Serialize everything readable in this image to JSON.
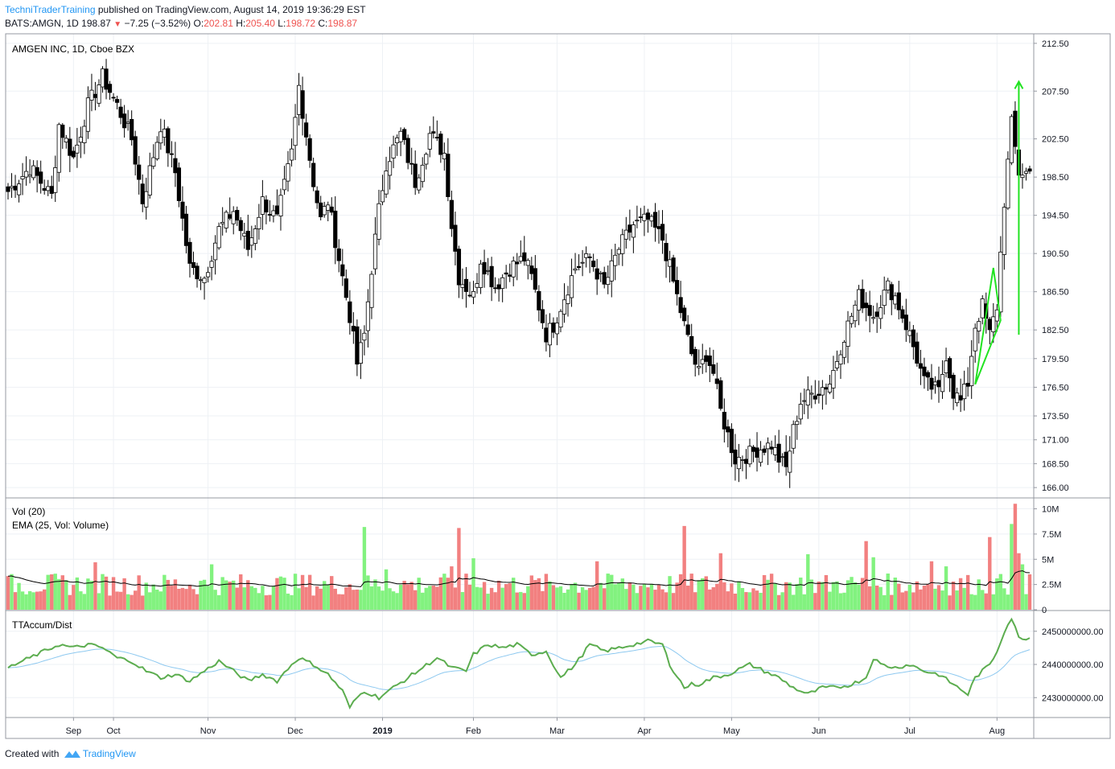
{
  "header": {
    "author": "TechniTraderTraining",
    "published_text": "published on TradingView.com, August 14, 2019 19:36:29 EST",
    "symbol": "BATS:AMGN, 1D",
    "last": "198.87",
    "change": "−7.25 (−3.52%)",
    "o_label": "O:",
    "o_value": "202.81",
    "h_label": "H:",
    "h_value": "205.40",
    "l_label": "L:",
    "l_value": "198.72",
    "c_label": "C:",
    "c_value": "198.87"
  },
  "footer": {
    "created_with": "Created with",
    "brand": "TradingView"
  },
  "colors": {
    "up_volume": "#82f27f",
    "down_volume": "#f28080",
    "candle_down": "#000000",
    "candle_up": "#ffffff",
    "indicator_line": "#5cad4f",
    "indicator_signal": "#8ec9f0",
    "annotation": "#21e321",
    "grid": "#eef1f5",
    "border": "#9598a1"
  },
  "chart_data": [
    {
      "type": "candlestick",
      "title": "AMGEN INC, 1D, Cboe BZX",
      "ylim": [
        165,
        213.5
      ],
      "y_ticks": [
        "212.50",
        "207.50",
        "202.50",
        "198.50",
        "194.50",
        "190.50",
        "186.50",
        "182.50",
        "179.50",
        "176.50",
        "173.50",
        "171.00",
        "168.50",
        "166.00"
      ],
      "x_ticks": [
        "Sep",
        "Oct",
        "Nov",
        "Dec",
        "2019",
        "Feb",
        "Mar",
        "Apr",
        "May",
        "Jun",
        "Jul",
        "Aug"
      ],
      "x_tick_days": [
        18,
        29,
        55,
        79,
        103,
        128,
        151,
        175,
        199,
        223,
        248,
        272
      ],
      "close_anchors": [
        [
          0,
          197
        ],
        [
          6,
          199.5
        ],
        [
          12,
          196.5
        ],
        [
          14,
          204
        ],
        [
          18,
          200.5
        ],
        [
          22,
          206
        ],
        [
          26,
          209
        ],
        [
          30,
          206
        ],
        [
          34,
          202.5
        ],
        [
          37,
          196
        ],
        [
          42,
          204
        ],
        [
          46,
          199
        ],
        [
          50,
          189
        ],
        [
          54,
          188
        ],
        [
          58,
          193
        ],
        [
          62,
          195
        ],
        [
          66,
          191
        ],
        [
          70,
          196
        ],
        [
          74,
          194
        ],
        [
          78,
          201
        ],
        [
          80,
          208
        ],
        [
          82,
          203
        ],
        [
          84,
          198
        ],
        [
          86,
          194
        ],
        [
          88,
          196
        ],
        [
          92,
          188
        ],
        [
          94,
          184
        ],
        [
          96,
          179
        ],
        [
          98,
          182
        ],
        [
          100,
          189
        ],
        [
          102,
          195
        ],
        [
          104,
          200
        ],
        [
          108,
          203
        ],
        [
          112,
          198
        ],
        [
          116,
          203
        ],
        [
          120,
          201
        ],
        [
          122,
          193.5
        ],
        [
          124,
          188
        ],
        [
          126,
          187
        ],
        [
          128,
          186
        ],
        [
          130,
          190
        ],
        [
          134,
          187
        ],
        [
          138,
          189
        ],
        [
          142,
          190
        ],
        [
          144,
          188
        ],
        [
          148,
          182
        ],
        [
          150,
          183
        ],
        [
          154,
          187
        ],
        [
          156,
          189
        ],
        [
          160,
          190
        ],
        [
          164,
          187
        ],
        [
          168,
          191
        ],
        [
          172,
          193.5
        ],
        [
          176,
          194
        ],
        [
          180,
          192
        ],
        [
          184,
          186
        ],
        [
          186,
          183
        ],
        [
          188,
          180
        ],
        [
          190,
          178
        ],
        [
          192,
          180
        ],
        [
          194,
          178
        ],
        [
          196,
          174
        ],
        [
          198,
          171.5
        ],
        [
          200,
          169
        ],
        [
          204,
          169.5
        ],
        [
          206,
          170
        ],
        [
          210,
          170.5
        ],
        [
          212,
          169
        ],
        [
          214,
          168
        ],
        [
          216,
          172
        ],
        [
          218,
          175
        ],
        [
          222,
          176
        ],
        [
          226,
          177
        ],
        [
          230,
          182
        ],
        [
          234,
          186
        ],
        [
          238,
          184
        ],
        [
          242,
          187
        ],
        [
          244,
          186
        ],
        [
          246,
          184
        ],
        [
          248,
          182
        ],
        [
          252,
          177
        ],
        [
          256,
          176
        ],
        [
          258,
          180
        ],
        [
          260,
          176
        ],
        [
          262,
          175
        ],
        [
          264,
          177
        ],
        [
          266,
          183
        ],
        [
          268,
          185
        ],
        [
          270,
          182
        ],
        [
          272,
          185
        ],
        [
          274,
          196
        ],
        [
          276,
          204
        ],
        [
          278,
          199
        ]
      ],
      "annotations": {
        "triangle": [
          [
            266,
            176.8
          ],
          [
            271,
            189
          ],
          [
            273,
            183.5
          ],
          [
            266,
            176.8
          ]
        ],
        "arrow": [
          [
            278,
            182
          ],
          [
            278,
            208.5
          ]
        ]
      }
    },
    {
      "type": "bar",
      "title": "Vol (20)",
      "subtitle": "EMA (25, Vol: Volume)",
      "ylim": [
        0,
        11000000
      ],
      "y_ticks": [
        "10M",
        "7.5M",
        "5M",
        "2.5M",
        "0"
      ],
      "spikes": [
        [
          24,
          4.7
        ],
        [
          56,
          4.5
        ],
        [
          98,
          8.2
        ],
        [
          104,
          4
        ],
        [
          122,
          4.3
        ],
        [
          124,
          8.1
        ],
        [
          128,
          5.1
        ],
        [
          162,
          4.8
        ],
        [
          186,
          8.3
        ],
        [
          196,
          5.6
        ],
        [
          220,
          5.5
        ],
        [
          236,
          6.8
        ],
        [
          238,
          5.2
        ],
        [
          254,
          4.8
        ],
        [
          258,
          4.3
        ],
        [
          270,
          7.2
        ],
        [
          276,
          8.5
        ],
        [
          277,
          10.5
        ],
        [
          278,
          5.6
        ],
        [
          279,
          4.5
        ]
      ]
    },
    {
      "type": "line",
      "title": "TTAccum/Dist",
      "ylim": [
        2424000000,
        2456000000
      ],
      "y_ticks": [
        "2450000000.00",
        "2440000000.00",
        "2430000000.00"
      ],
      "anchors": [
        [
          0,
          2439
        ],
        [
          6,
          2442
        ],
        [
          10,
          2444
        ],
        [
          14,
          2446
        ],
        [
          18,
          2445
        ],
        [
          22,
          2446
        ],
        [
          26,
          2445
        ],
        [
          30,
          2442
        ],
        [
          34,
          2441
        ],
        [
          38,
          2438
        ],
        [
          42,
          2436
        ],
        [
          46,
          2437
        ],
        [
          50,
          2435
        ],
        [
          54,
          2438
        ],
        [
          58,
          2441
        ],
        [
          62,
          2438
        ],
        [
          66,
          2435
        ],
        [
          70,
          2437
        ],
        [
          74,
          2435
        ],
        [
          78,
          2440
        ],
        [
          80,
          2442
        ],
        [
          84,
          2440
        ],
        [
          88,
          2437
        ],
        [
          92,
          2432
        ],
        [
          94,
          2427
        ],
        [
          96,
          2430
        ],
        [
          98,
          2432
        ],
        [
          102,
          2430
        ],
        [
          106,
          2433
        ],
        [
          110,
          2436
        ],
        [
          114,
          2439
        ],
        [
          118,
          2442
        ],
        [
          122,
          2439
        ],
        [
          126,
          2438
        ],
        [
          128,
          2443
        ],
        [
          132,
          2446
        ],
        [
          136,
          2445
        ],
        [
          140,
          2446
        ],
        [
          144,
          2443
        ],
        [
          148,
          2444
        ],
        [
          150,
          2440
        ],
        [
          152,
          2436
        ],
        [
          156,
          2440
        ],
        [
          160,
          2446
        ],
        [
          164,
          2444
        ],
        [
          168,
          2445
        ],
        [
          172,
          2446
        ],
        [
          176,
          2447
        ],
        [
          180,
          2446
        ],
        [
          182,
          2440
        ],
        [
          186,
          2433
        ],
        [
          188,
          2434
        ],
        [
          190,
          2434
        ],
        [
          194,
          2436
        ],
        [
          198,
          2437
        ],
        [
          200,
          2438
        ],
        [
          204,
          2440
        ],
        [
          208,
          2438
        ],
        [
          212,
          2436
        ],
        [
          216,
          2433
        ],
        [
          220,
          2431
        ],
        [
          224,
          2433
        ],
        [
          228,
          2433
        ],
        [
          232,
          2434
        ],
        [
          236,
          2436
        ],
        [
          238,
          2442
        ],
        [
          240,
          2440
        ],
        [
          244,
          2439
        ],
        [
          248,
          2440
        ],
        [
          252,
          2438
        ],
        [
          256,
          2437
        ],
        [
          260,
          2434
        ],
        [
          264,
          2431
        ],
        [
          266,
          2436
        ],
        [
          270,
          2440
        ],
        [
          272,
          2444
        ],
        [
          274,
          2450
        ],
        [
          276,
          2454
        ],
        [
          278,
          2448
        ]
      ]
    }
  ]
}
